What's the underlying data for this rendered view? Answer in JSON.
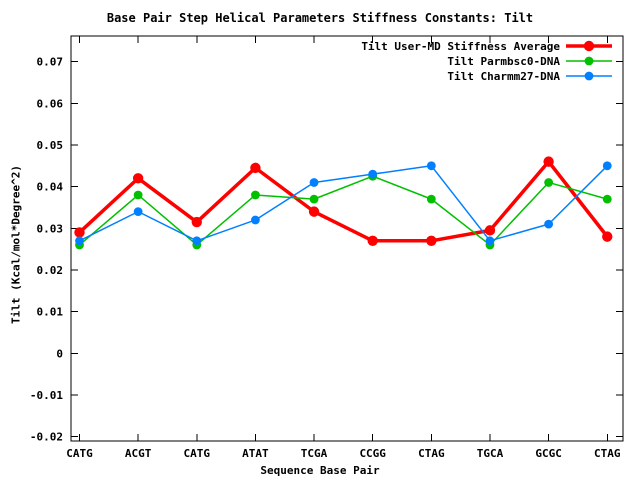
{
  "title": "Base Pair Step Helical Parameters Stiffness Constants: Tilt",
  "chart_data": {
    "type": "line",
    "title": "Base Pair Step Helical Parameters Stiffness Constants: Tilt",
    "xlabel": "Sequence Base Pair",
    "ylabel": "Tilt (Kcal/mol*Degree^2)",
    "categories": [
      "CATG",
      "ACGT",
      "CATG",
      "ATAT",
      "TCGA",
      "CCGG",
      "CTAG",
      "TGCA",
      "GCGC",
      "CTAG"
    ],
    "series": [
      {
        "name": "Tilt User-MD Stiffness Average",
        "color": "#ff0000",
        "line_width": 3.5,
        "marker": "filled-circle",
        "marker_radius": 5.2,
        "values": [
          0.029,
          0.042,
          0.0315,
          0.0445,
          0.034,
          0.027,
          0.027,
          0.0295,
          0.046,
          0.028
        ]
      },
      {
        "name": "Tilt Parmbsc0-DNA",
        "color": "#00c000",
        "line_width": 1.5,
        "marker": "filled-circle",
        "marker_radius": 4.4,
        "values": [
          0.026,
          0.038,
          0.026,
          0.038,
          0.037,
          0.0425,
          0.037,
          0.026,
          0.041,
          0.037
        ]
      },
      {
        "name": "Tilt Charmm27-DNA",
        "color": "#0080ff",
        "line_width": 1.5,
        "marker": "filled-circle",
        "marker_radius": 4.4,
        "values": [
          0.027,
          0.034,
          0.027,
          0.032,
          0.041,
          0.043,
          0.045,
          0.027,
          0.031,
          0.045
        ]
      }
    ],
    "ylim": [
      -0.02,
      0.07
    ],
    "y_ticks": [
      0.07,
      0.06,
      0.05,
      0.04,
      0.03,
      0.02,
      0.01,
      0,
      -0.01,
      -0.02
    ],
    "y_tick_labels": [
      "0.07",
      "0.06",
      "0.05",
      "0.04",
      "0.03",
      "0.02",
      "0.01",
      "0",
      "-0.01",
      "-0.02"
    ],
    "grid": false,
    "legend_position": "top-right-inside",
    "border_color": "#000000",
    "background_color": "#ffffff"
  }
}
